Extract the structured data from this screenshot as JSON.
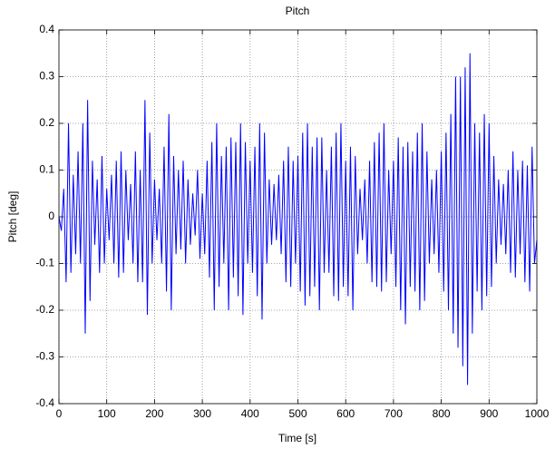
{
  "chart_data": {
    "type": "line",
    "title": "Pitch",
    "x_label": "Time [s]",
    "y_label": "Pitch [deg]",
    "xlim": [
      0,
      1000
    ],
    "ylim": [
      -0.4,
      0.4
    ],
    "xticks": [
      0,
      100,
      200,
      300,
      400,
      500,
      600,
      700,
      800,
      900,
      1000
    ],
    "yticks": [
      -0.4,
      -0.3,
      -0.2,
      -0.1,
      0,
      0.1,
      0.2,
      0.3,
      0.4
    ],
    "grid": true,
    "x": [
      0,
      5,
      10,
      15,
      20,
      25,
      30,
      35,
      40,
      45,
      50,
      55,
      60,
      65,
      70,
      75,
      80,
      85,
      90,
      95,
      100,
      105,
      110,
      115,
      120,
      125,
      130,
      135,
      140,
      145,
      150,
      155,
      160,
      165,
      170,
      175,
      180,
      185,
      190,
      195,
      200,
      205,
      210,
      215,
      220,
      225,
      230,
      235,
      240,
      245,
      250,
      255,
      260,
      265,
      270,
      275,
      280,
      285,
      290,
      295,
      300,
      305,
      310,
      315,
      320,
      325,
      330,
      335,
      340,
      345,
      350,
      355,
      360,
      365,
      370,
      375,
      380,
      385,
      390,
      395,
      400,
      405,
      410,
      415,
      420,
      425,
      430,
      435,
      440,
      445,
      450,
      455,
      460,
      465,
      470,
      475,
      480,
      485,
      490,
      495,
      500,
      505,
      510,
      515,
      520,
      525,
      530,
      535,
      540,
      545,
      550,
      555,
      560,
      565,
      570,
      575,
      580,
      585,
      590,
      595,
      600,
      605,
      610,
      615,
      620,
      625,
      630,
      635,
      640,
      645,
      650,
      655,
      660,
      665,
      670,
      675,
      680,
      685,
      690,
      695,
      700,
      705,
      710,
      715,
      720,
      725,
      730,
      735,
      740,
      745,
      750,
      755,
      760,
      765,
      770,
      775,
      780,
      785,
      790,
      795,
      800,
      805,
      810,
      815,
      820,
      825,
      830,
      835,
      840,
      845,
      850,
      855,
      860,
      865,
      870,
      875,
      880,
      885,
      890,
      895,
      900,
      905,
      910,
      915,
      920,
      925,
      930,
      935,
      940,
      945,
      950,
      955,
      960,
      965,
      970,
      975,
      980,
      985,
      990,
      995,
      1000
    ],
    "series": [
      {
        "name": "Pitch",
        "color": "#0000ff",
        "values": [
          0,
          -0.03,
          0.06,
          -0.14,
          0.2,
          -0.12,
          0.09,
          -0.08,
          0.14,
          -0.1,
          0.2,
          -0.25,
          0.25,
          -0.18,
          0.12,
          -0.06,
          0.08,
          -0.12,
          0.13,
          -0.1,
          0.06,
          -0.05,
          0.09,
          -0.1,
          0.12,
          -0.13,
          0.14,
          -0.12,
          0.1,
          -0.05,
          0.07,
          -0.1,
          0.14,
          -0.14,
          0.1,
          -0.14,
          0.25,
          -0.21,
          0.18,
          -0.1,
          0.08,
          -0.05,
          0.06,
          -0.1,
          0.15,
          -0.16,
          0.22,
          -0.2,
          0.13,
          -0.08,
          0.1,
          -0.07,
          0.12,
          -0.1,
          0.08,
          -0.06,
          0.05,
          -0.04,
          0.1,
          -0.09,
          0.05,
          -0.08,
          0.12,
          -0.13,
          0.16,
          -0.2,
          0.2,
          -0.15,
          0.13,
          -0.1,
          0.15,
          -0.2,
          0.17,
          -0.13,
          0.16,
          -0.17,
          0.2,
          -0.21,
          0.16,
          -0.1,
          0.12,
          -0.12,
          0.15,
          -0.17,
          0.2,
          -0.22,
          0.18,
          -0.1,
          0.08,
          -0.06,
          0.07,
          -0.05,
          0.09,
          -0.08,
          0.12,
          -0.14,
          0.15,
          -0.15,
          0.12,
          -0.1,
          0.13,
          -0.16,
          0.18,
          -0.19,
          0.2,
          -0.17,
          0.15,
          -0.15,
          0.17,
          -0.2,
          0.17,
          -0.12,
          0.1,
          -0.12,
          0.15,
          -0.17,
          0.18,
          -0.18,
          0.2,
          -0.15,
          0.12,
          -0.17,
          0.15,
          -0.2,
          0.13,
          -0.08,
          0.06,
          -0.05,
          0.08,
          -0.1,
          0.12,
          -0.14,
          0.16,
          -0.15,
          0.18,
          -0.16,
          0.2,
          -0.14,
          0.1,
          -0.08,
          0.12,
          -0.15,
          0.17,
          -0.2,
          0.15,
          -0.23,
          0.16,
          -0.15,
          0.14,
          -0.16,
          0.18,
          -0.2,
          0.2,
          -0.18,
          0.14,
          -0.1,
          0.08,
          -0.08,
          0.1,
          -0.12,
          0.14,
          -0.16,
          0.18,
          -0.2,
          0.22,
          -0.25,
          0.3,
          -0.28,
          0.3,
          -0.32,
          0.32,
          -0.36,
          0.35,
          -0.25,
          0.2,
          -0.16,
          0.18,
          -0.2,
          0.22,
          -0.17,
          0.2,
          -0.15,
          0.13,
          -0.1,
          0.08,
          -0.06,
          0.07,
          -0.08,
          0.1,
          -0.12,
          0.14,
          -0.13,
          0.1,
          -0.08,
          0.12,
          -0.14,
          0.11,
          -0.16,
          0.15,
          -0.1,
          -0.05
        ]
      }
    ]
  }
}
